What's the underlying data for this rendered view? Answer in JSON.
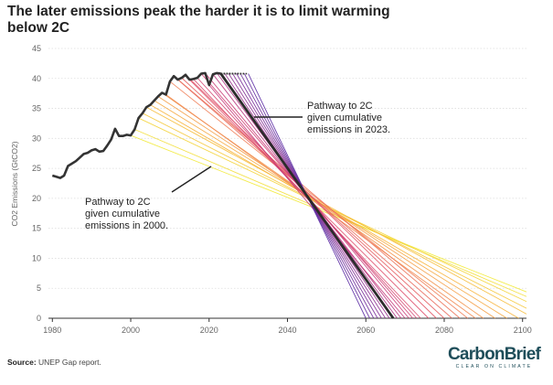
{
  "chart_data": {
    "type": "line",
    "title": "The later emissions peak the harder it is to limit warming below 2C",
    "ylabel": "CO2 Emissions (GtCO2)",
    "xlabel": "",
    "xlim": [
      1979,
      2101
    ],
    "ylim": [
      0,
      45
    ],
    "x_ticks": [
      1980,
      2000,
      2020,
      2040,
      2060,
      2080,
      2100
    ],
    "y_ticks": [
      0,
      5,
      10,
      15,
      20,
      25,
      30,
      35,
      40,
      45
    ],
    "grid": true,
    "historical": {
      "x": [
        1980,
        1981,
        1982,
        1983,
        1984,
        1985,
        1986,
        1987,
        1988,
        1989,
        1990,
        1991,
        1992,
        1993,
        1994,
        1995,
        1996,
        1997,
        1998,
        1999,
        2000,
        2001,
        2002,
        2003,
        2004,
        2005,
        2006,
        2007,
        2008,
        2009,
        2010,
        2011,
        2012,
        2013,
        2014,
        2015,
        2016,
        2017,
        2018,
        2019,
        2020,
        2021,
        2022,
        2023
      ],
      "y": [
        23.8,
        23.6,
        23.4,
        23.8,
        25.4,
        25.8,
        26.2,
        26.8,
        27.4,
        27.6,
        28.0,
        28.2,
        27.8,
        27.9,
        28.8,
        29.8,
        31.6,
        30.4,
        30.4,
        30.6,
        30.5,
        31.5,
        33.4,
        34.2,
        35.2,
        35.6,
        36.3,
        37.0,
        37.6,
        37.3,
        39.5,
        40.4,
        39.8,
        40.1,
        40.6,
        39.8,
        39.9,
        40.1,
        40.8,
        40.9,
        38.9,
        40.7,
        40.9,
        40.8
      ]
    },
    "pathways": {
      "start_years": [
        2000,
        2001,
        2002,
        2003,
        2004,
        2005,
        2006,
        2007,
        2008,
        2009,
        2010,
        2011,
        2012,
        2013,
        2014,
        2015,
        2016,
        2017,
        2018,
        2019,
        2020,
        2021,
        2022,
        2023,
        2024,
        2025,
        2026,
        2027,
        2028,
        2029,
        2030
      ],
      "start_values": [
        30.5,
        31.5,
        33.4,
        34.2,
        35.2,
        35.6,
        36.3,
        37.0,
        37.6,
        37.3,
        39.5,
        40.4,
        39.8,
        40.1,
        40.6,
        39.8,
        39.9,
        40.1,
        40.8,
        40.9,
        38.9,
        40.7,
        40.9,
        40.8,
        40.8,
        40.8,
        40.8,
        40.8,
        40.8,
        40.8,
        40.8
      ],
      "zero_years": [
        2118,
        2114,
        2110,
        2106,
        2103,
        2099,
        2096,
        2093,
        2090,
        2088,
        2086,
        2084,
        2082,
        2080,
        2078,
        2076,
        2074,
        2073,
        2072,
        2071,
        2070,
        2069,
        2068,
        2067,
        2066,
        2065,
        2064,
        2063,
        2062,
        2061,
        2060
      ],
      "highlight_start_year": 2023
    },
    "annotations": [
      {
        "id": "2023",
        "lines": [
          "Pathway to 2C",
          "given cumulative",
          "emissions in 2023."
        ]
      },
      {
        "id": "2000",
        "lines": [
          "Pathway to 2C",
          "given cumulative",
          "emissions in 2000."
        ]
      }
    ],
    "colors": {
      "historical": "#333333",
      "highlight": "#2b2b2b",
      "gradient": [
        "#f2ea3a",
        "#f7b23a",
        "#ef7d55",
        "#df4f6c",
        "#c43578",
        "#8b2e90",
        "#5a2aa3"
      ],
      "grid": "#dddddd"
    }
  },
  "footer": {
    "source_label": "Source:",
    "source_text": "UNEP Gap report.",
    "logo_brand": "CarbonBrief",
    "logo_tagline": "CLEAR ON CLIMATE"
  }
}
